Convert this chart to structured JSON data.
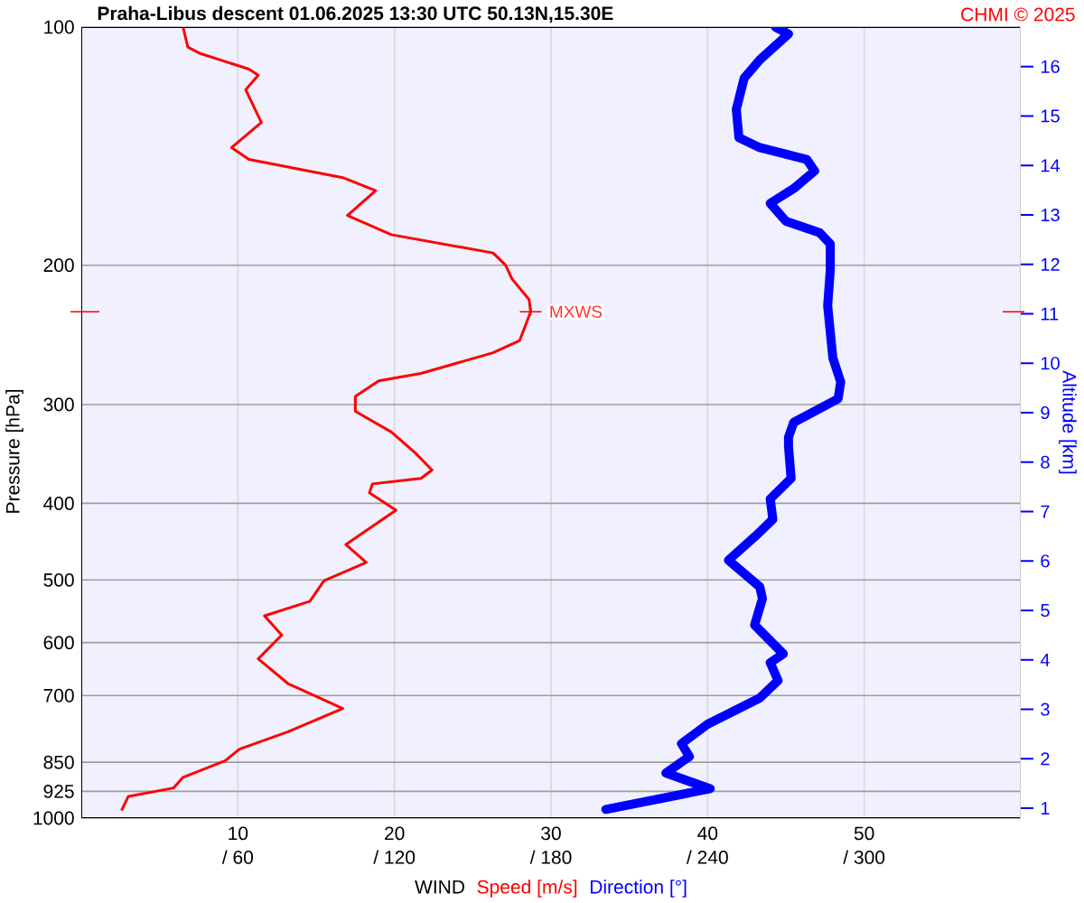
{
  "chart_data": {
    "type": "line",
    "title": "Praha-Libus   descent   01.06.2025 13:30 UTC   50.13N,15.30E",
    "xlabel": "WIND",
    "ylabel": "Pressure [hPa]",
    "y2label": "Altitude [km]",
    "annotations": [
      "CHMI © 2025",
      {
        "text": "MXWS",
        "x": 28.7,
        "y": 229
      }
    ],
    "xlim": [
      0,
      60
    ],
    "xticks": [
      10,
      20,
      30,
      40,
      50
    ],
    "x2lim": [
      0,
      360
    ],
    "x2ticks": [
      {
        "value": 60,
        "label": "/ 60"
      },
      {
        "value": 120,
        "label": "/ 120"
      },
      {
        "value": 180,
        "label": "/ 180"
      },
      {
        "value": 240,
        "label": "/ 240"
      },
      {
        "value": 300,
        "label": "/ 300"
      }
    ],
    "ylim": [
      1000,
      100
    ],
    "yticks": [
      100,
      200,
      300,
      400,
      500,
      600,
      700,
      850,
      925,
      1000
    ],
    "y2lim": [
      0.8,
      16.8
    ],
    "y2ticks": [
      1,
      2,
      3,
      4,
      5,
      6,
      7,
      8,
      9,
      10,
      11,
      12,
      13,
      14,
      15,
      16
    ],
    "log": "y",
    "grid": true,
    "legend": "bottom",
    "series": [
      {
        "name": "Speed [m/s]",
        "color": "#ff0000",
        "x": [
          6.5,
          6.8,
          7.6,
          10.7,
          11.3,
          10.5,
          11.5,
          9.6,
          10.7,
          16.7,
          18.8,
          17.0,
          19.8,
          26.3,
          27.1,
          27.5,
          28.6,
          28.7,
          28.0,
          26.3,
          21.7,
          19.0,
          17.5,
          17.5,
          19.8,
          21.3,
          22.4,
          21.7,
          18.6,
          18.4,
          20.1,
          16.9,
          18.2,
          15.5,
          14.6,
          11.7,
          12.8,
          11.3,
          13.2,
          16.7,
          13.2,
          10.1,
          9.2,
          6.5,
          5.9,
          3.0,
          2.6
        ],
        "values": [
          100,
          106,
          108,
          113,
          115,
          120,
          132,
          142,
          147,
          155,
          161,
          173,
          183,
          193,
          200,
          208,
          221,
          229,
          249,
          258,
          274,
          280,
          293,
          306,
          325,
          345,
          363,
          372,
          378,
          388,
          408,
          451,
          475,
          501,
          532,
          555,
          587,
          629,
          676,
          727,
          778,
          818,
          846,
          888,
          916,
          939,
          975
        ]
      },
      {
        "name": "Direction [°]",
        "color": "#0000ff",
        "axis": "x2",
        "x": [
          266,
          271,
          260,
          254,
          251,
          252,
          260,
          278,
          281,
          273,
          264,
          270,
          283,
          287,
          287,
          286,
          288,
          291,
          290,
          273,
          271,
          271,
          272,
          264,
          265,
          258,
          248,
          260,
          261,
          258,
          269,
          264,
          267,
          260,
          240,
          230,
          233,
          224,
          241,
          201
        ],
        "values": [
          100,
          102,
          110,
          116,
          127,
          138,
          142,
          147,
          152,
          160,
          167,
          176,
          182,
          188,
          203,
          225,
          262,
          281,
          295,
          316,
          330,
          339,
          372,
          395,
          419,
          441,
          472,
          510,
          528,
          570,
          620,
          636,
          670,
          705,
          761,
          805,
          836,
          877,
          918,
          975
        ]
      }
    ]
  }
}
